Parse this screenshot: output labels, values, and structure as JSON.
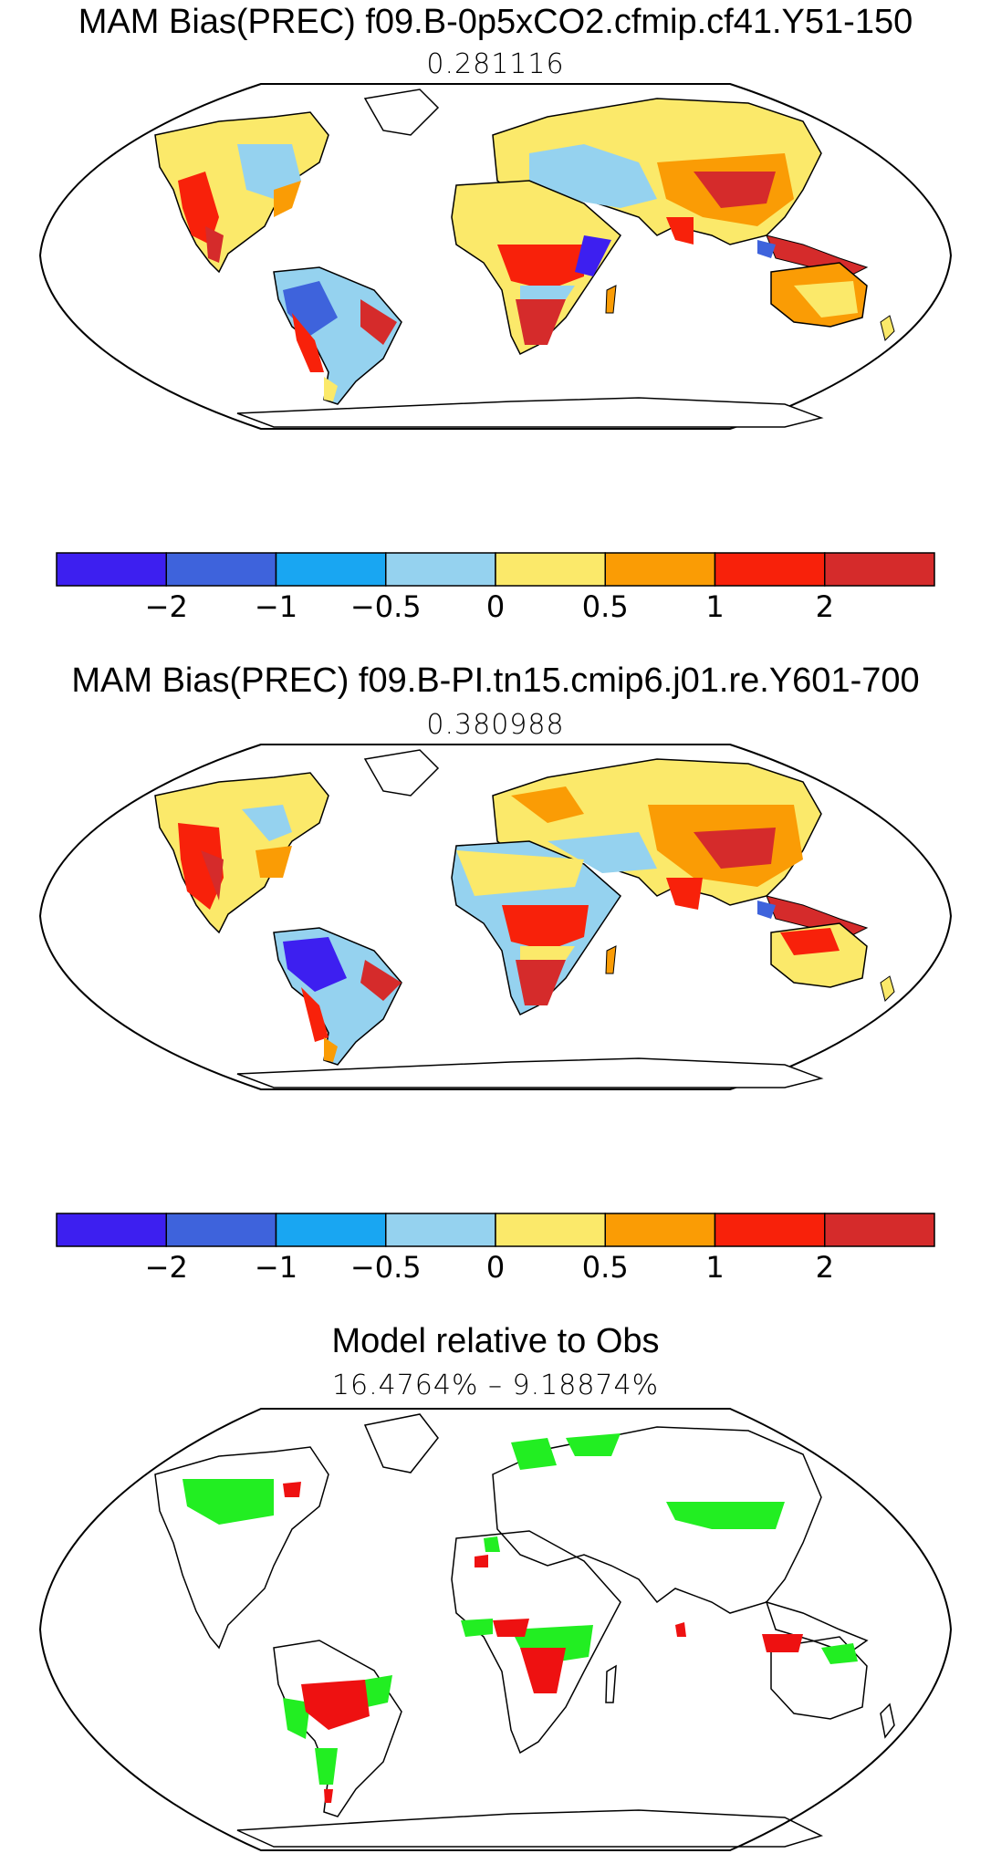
{
  "panels": [
    {
      "title": "MAM Bias(PREC) f09.B-0p5xCO2.cfmip.cf41.Y51-150",
      "subtitle": "0.281116"
    },
    {
      "title": "MAM Bias(PREC) f09.B-PI.tn15.cmip6.j01.re.Y601-700",
      "subtitle": "0.380988"
    },
    {
      "title": "Model relative to Obs",
      "subtitle": "16.4764% – 9.18874%"
    }
  ],
  "colorbar": {
    "colors": [
      "#3d1ff0",
      "#3e63dc",
      "#19a6f2",
      "#95d2ef",
      "#fbe96a",
      "#fa9c05",
      "#f8210a",
      "#d52b2b"
    ],
    "tick_labels": [
      "−2",
      "−1",
      "−0.5",
      "0",
      "0.5",
      "1",
      "2"
    ]
  },
  "map_colors": {
    "ocean": "#ffffff",
    "coast": "#000000",
    "better": "#22ee22",
    "worse": "#ee1111"
  }
}
